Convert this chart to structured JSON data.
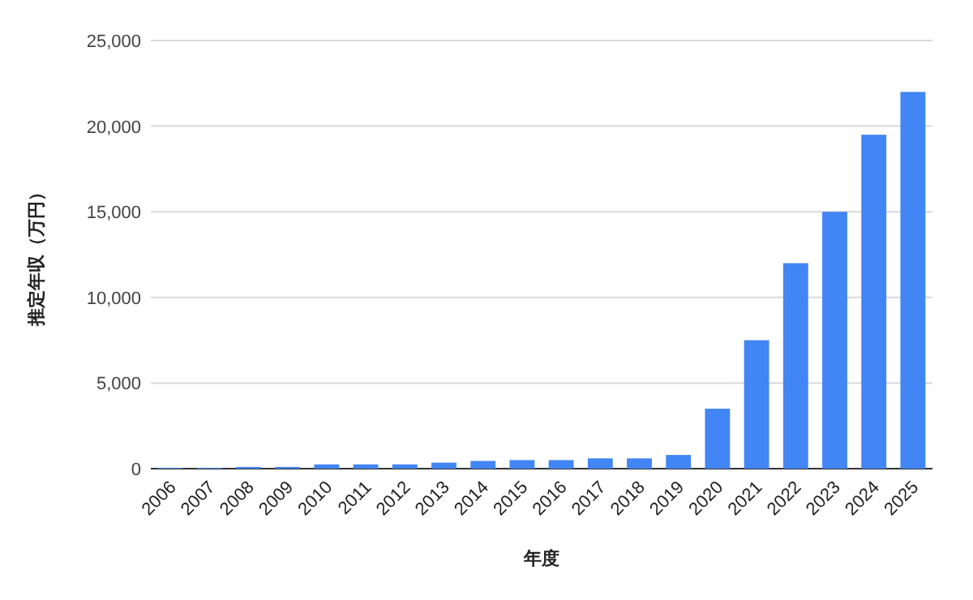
{
  "chart_data": {
    "type": "bar",
    "xlabel": "年度",
    "ylabel": "推定年収（万円）",
    "categories": [
      "2006",
      "2007",
      "2008",
      "2009",
      "2010",
      "2011",
      "2012",
      "2013",
      "2014",
      "2015",
      "2016",
      "2017",
      "2018",
      "2019",
      "2020",
      "2021",
      "2022",
      "2023",
      "2024",
      "2025"
    ],
    "values": [
      50,
      50,
      100,
      100,
      250,
      250,
      250,
      350,
      450,
      500,
      500,
      600,
      600,
      800,
      3500,
      7500,
      12000,
      15000,
      19500,
      22000
    ],
    "color": "#4285f4",
    "ylim": [
      0,
      25000
    ],
    "yticks": [
      0,
      {
        "value": 5000,
        "label": "5,000"
      },
      {
        "value": 10000,
        "label": "10,000"
      },
      {
        "value": 15000,
        "label": "15,000"
      },
      {
        "value": 20000,
        "label": "20,000"
      },
      {
        "value": 25000,
        "label": "25,000"
      }
    ],
    "grid": "y"
  }
}
